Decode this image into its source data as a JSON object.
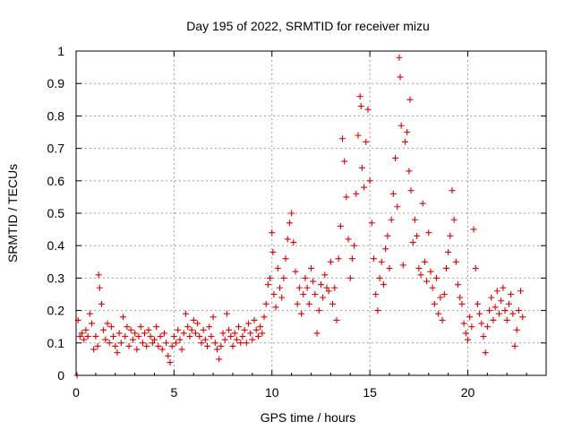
{
  "chart_data": {
    "type": "scatter",
    "title": "Day 195 of 2022, SRMTID for receiver mizu",
    "xlabel": "GPS time / hours",
    "ylabel": "SRMTID / TECUs",
    "xlim": [
      0,
      24
    ],
    "ylim": [
      0,
      1
    ],
    "x_ticks": [
      0,
      5,
      10,
      15,
      20
    ],
    "x_tick_labels": [
      "0",
      "5",
      "10",
      "15",
      "20"
    ],
    "y_ticks": [
      0,
      0.1,
      0.2,
      0.3,
      0.4,
      0.5,
      0.6,
      0.7,
      0.8,
      0.9,
      1
    ],
    "y_tick_labels": [
      "0",
      "0.1",
      "0.2",
      "0.3",
      "0.4",
      "0.5",
      "0.6",
      "0.7",
      "0.8",
      "0.9",
      "1"
    ],
    "grid": true,
    "marker": "plus",
    "series": [
      {
        "name": "SRMTID",
        "color": "#e00000",
        "points": [
          [
            0.05,
            0.0
          ],
          [
            0.1,
            0.17
          ],
          [
            0.2,
            0.12
          ],
          [
            0.3,
            0.13
          ],
          [
            0.4,
            0.11
          ],
          [
            0.5,
            0.14
          ],
          [
            0.6,
            0.12
          ],
          [
            0.7,
            0.19
          ],
          [
            0.8,
            0.16
          ],
          [
            0.9,
            0.08
          ],
          [
            1.0,
            0.12
          ],
          [
            1.1,
            0.09
          ],
          [
            1.15,
            0.31
          ],
          [
            1.2,
            0.27
          ],
          [
            1.3,
            0.22
          ],
          [
            1.4,
            0.14
          ],
          [
            1.5,
            0.11
          ],
          [
            1.6,
            0.16
          ],
          [
            1.7,
            0.1
          ],
          [
            1.8,
            0.15
          ],
          [
            1.9,
            0.12
          ],
          [
            2.0,
            0.09
          ],
          [
            2.1,
            0.07
          ],
          [
            2.2,
            0.13
          ],
          [
            2.3,
            0.1
          ],
          [
            2.4,
            0.18
          ],
          [
            2.5,
            0.12
          ],
          [
            2.6,
            0.15
          ],
          [
            2.7,
            0.09
          ],
          [
            2.8,
            0.14
          ],
          [
            2.9,
            0.11
          ],
          [
            3.0,
            0.13
          ],
          [
            3.1,
            0.08
          ],
          [
            3.2,
            0.12
          ],
          [
            3.3,
            0.15
          ],
          [
            3.4,
            0.1
          ],
          [
            3.5,
            0.13
          ],
          [
            3.6,
            0.09
          ],
          [
            3.7,
            0.14
          ],
          [
            3.8,
            0.12
          ],
          [
            3.9,
            0.1
          ],
          [
            4.0,
            0.11
          ],
          [
            4.1,
            0.15
          ],
          [
            4.2,
            0.09
          ],
          [
            4.3,
            0.12
          ],
          [
            4.4,
            0.08
          ],
          [
            4.5,
            0.13
          ],
          [
            4.6,
            0.1
          ],
          [
            4.7,
            0.06
          ],
          [
            4.8,
            0.04
          ],
          [
            4.9,
            0.09
          ],
          [
            5.0,
            0.12
          ],
          [
            5.1,
            0.1
          ],
          [
            5.2,
            0.14
          ],
          [
            5.3,
            0.11
          ],
          [
            5.4,
            0.08
          ],
          [
            5.5,
            0.13
          ],
          [
            5.6,
            0.19
          ],
          [
            5.7,
            0.15
          ],
          [
            5.8,
            0.12
          ],
          [
            5.9,
            0.14
          ],
          [
            6.0,
            0.17
          ],
          [
            6.1,
            0.13
          ],
          [
            6.2,
            0.16
          ],
          [
            6.3,
            0.12
          ],
          [
            6.4,
            0.1
          ],
          [
            6.5,
            0.14
          ],
          [
            6.6,
            0.11
          ],
          [
            6.7,
            0.09
          ],
          [
            6.8,
            0.15
          ],
          [
            6.9,
            0.12
          ],
          [
            7.0,
            0.18
          ],
          [
            7.1,
            0.1
          ],
          [
            7.2,
            0.08
          ],
          [
            7.3,
            0.05
          ],
          [
            7.4,
            0.09
          ],
          [
            7.5,
            0.13
          ],
          [
            7.6,
            0.11
          ],
          [
            7.7,
            0.19
          ],
          [
            7.8,
            0.14
          ],
          [
            7.9,
            0.12
          ],
          [
            8.0,
            0.09
          ],
          [
            8.1,
            0.13
          ],
          [
            8.2,
            0.11
          ],
          [
            8.3,
            0.15
          ],
          [
            8.4,
            0.1
          ],
          [
            8.5,
            0.12
          ],
          [
            8.6,
            0.14
          ],
          [
            8.7,
            0.1
          ],
          [
            8.8,
            0.16
          ],
          [
            8.9,
            0.13
          ],
          [
            9.0,
            0.11
          ],
          [
            9.1,
            0.17
          ],
          [
            9.2,
            0.14
          ],
          [
            9.3,
            0.12
          ],
          [
            9.4,
            0.15
          ],
          [
            9.5,
            0.13
          ],
          [
            9.6,
            0.18
          ],
          [
            9.7,
            0.22
          ],
          [
            9.8,
            0.28
          ],
          [
            9.9,
            0.3
          ],
          [
            10.0,
            0.44
          ],
          [
            10.05,
            0.38
          ],
          [
            10.1,
            0.25
          ],
          [
            10.2,
            0.21
          ],
          [
            10.3,
            0.33
          ],
          [
            10.4,
            0.27
          ],
          [
            10.5,
            0.24
          ],
          [
            10.6,
            0.3
          ],
          [
            10.7,
            0.36
          ],
          [
            10.8,
            0.42
          ],
          [
            10.9,
            0.47
          ],
          [
            11.0,
            0.5
          ],
          [
            11.1,
            0.41
          ],
          [
            11.2,
            0.32
          ],
          [
            11.3,
            0.22
          ],
          [
            11.4,
            0.27
          ],
          [
            11.5,
            0.19
          ],
          [
            11.6,
            0.25
          ],
          [
            11.7,
            0.3
          ],
          [
            11.8,
            0.27
          ],
          [
            11.9,
            0.22
          ],
          [
            12.0,
            0.33
          ],
          [
            12.1,
            0.29
          ],
          [
            12.2,
            0.25
          ],
          [
            12.3,
            0.13
          ],
          [
            12.4,
            0.2
          ],
          [
            12.5,
            0.28
          ],
          [
            12.6,
            0.24
          ],
          [
            12.7,
            0.31
          ],
          [
            12.8,
            0.27
          ],
          [
            12.9,
            0.26
          ],
          [
            13.0,
            0.35
          ],
          [
            13.1,
            0.22
          ],
          [
            13.2,
            0.27
          ],
          [
            13.3,
            0.17
          ],
          [
            13.4,
            0.36
          ],
          [
            13.5,
            0.46
          ],
          [
            13.6,
            0.73
          ],
          [
            13.7,
            0.66
          ],
          [
            13.8,
            0.55
          ],
          [
            13.9,
            0.42
          ],
          [
            14.0,
            0.3
          ],
          [
            14.1,
            0.36
          ],
          [
            14.2,
            0.4
          ],
          [
            14.3,
            0.56
          ],
          [
            14.4,
            0.74
          ],
          [
            14.5,
            0.86
          ],
          [
            14.55,
            0.83
          ],
          [
            14.6,
            0.64
          ],
          [
            14.7,
            0.58
          ],
          [
            14.8,
            0.72
          ],
          [
            14.9,
            0.82
          ],
          [
            15.0,
            0.6
          ],
          [
            15.1,
            0.47
          ],
          [
            15.2,
            0.36
          ],
          [
            15.3,
            0.25
          ],
          [
            15.4,
            0.2
          ],
          [
            15.5,
            0.3
          ],
          [
            15.6,
            0.35
          ],
          [
            15.7,
            0.28
          ],
          [
            15.8,
            0.39
          ],
          [
            15.9,
            0.43
          ],
          [
            16.0,
            0.33
          ],
          [
            16.1,
            0.48
          ],
          [
            16.2,
            0.56
          ],
          [
            16.3,
            0.67
          ],
          [
            16.4,
            0.52
          ],
          [
            16.5,
            0.98
          ],
          [
            16.55,
            0.92
          ],
          [
            16.6,
            0.77
          ],
          [
            16.7,
            0.34
          ],
          [
            16.8,
            0.72
          ],
          [
            16.9,
            0.75
          ],
          [
            17.0,
            0.63
          ],
          [
            17.05,
            0.85
          ],
          [
            17.1,
            0.57
          ],
          [
            17.2,
            0.41
          ],
          [
            17.3,
            0.48
          ],
          [
            17.4,
            0.43
          ],
          [
            17.5,
            0.33
          ],
          [
            17.6,
            0.31
          ],
          [
            17.7,
            0.53
          ],
          [
            17.8,
            0.35
          ],
          [
            17.9,
            0.29
          ],
          [
            18.0,
            0.44
          ],
          [
            18.1,
            0.32
          ],
          [
            18.2,
            0.27
          ],
          [
            18.3,
            0.22
          ],
          [
            18.4,
            0.3
          ],
          [
            18.5,
            0.19
          ],
          [
            18.6,
            0.24
          ],
          [
            18.7,
            0.17
          ],
          [
            18.8,
            0.25
          ],
          [
            18.9,
            0.33
          ],
          [
            19.0,
            0.38
          ],
          [
            19.1,
            0.43
          ],
          [
            19.2,
            0.57
          ],
          [
            19.3,
            0.48
          ],
          [
            19.4,
            0.35
          ],
          [
            19.5,
            0.28
          ],
          [
            19.6,
            0.24
          ],
          [
            19.7,
            0.22
          ],
          [
            19.8,
            0.16
          ],
          [
            19.9,
            0.13
          ],
          [
            20.0,
            0.11
          ],
          [
            20.1,
            0.18
          ],
          [
            20.2,
            0.15
          ],
          [
            20.3,
            0.45
          ],
          [
            20.4,
            0.33
          ],
          [
            20.5,
            0.22
          ],
          [
            20.6,
            0.19
          ],
          [
            20.7,
            0.16
          ],
          [
            20.8,
            0.12
          ],
          [
            20.9,
            0.07
          ],
          [
            21.0,
            0.15
          ],
          [
            21.1,
            0.2
          ],
          [
            21.2,
            0.24
          ],
          [
            21.3,
            0.17
          ],
          [
            21.4,
            0.21
          ],
          [
            21.5,
            0.26
          ],
          [
            21.6,
            0.19
          ],
          [
            21.7,
            0.23
          ],
          [
            21.8,
            0.27
          ],
          [
            21.9,
            0.2
          ],
          [
            22.0,
            0.17
          ],
          [
            22.1,
            0.22
          ],
          [
            22.2,
            0.25
          ],
          [
            22.3,
            0.19
          ],
          [
            22.4,
            0.09
          ],
          [
            22.5,
            0.14
          ],
          [
            22.6,
            0.2
          ],
          [
            22.7,
            0.26
          ],
          [
            22.8,
            0.18
          ]
        ]
      }
    ]
  }
}
